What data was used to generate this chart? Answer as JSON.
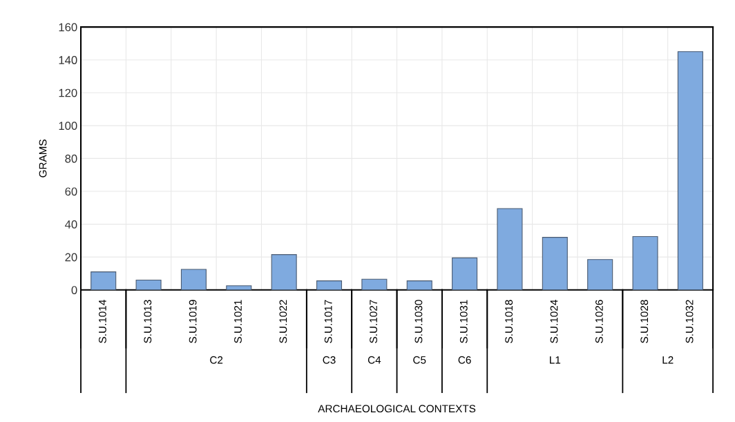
{
  "chart_data": {
    "type": "bar",
    "ylabel": "GRAMS",
    "categories": [
      "S.U.1014",
      "S.U.1013",
      "S.U.1019",
      "S.U.1021",
      "S.U.1022",
      "S.U.1017",
      "S.U.1027",
      "S.U.1030",
      "S.U.1031",
      "S.U.1018",
      "S.U.1024",
      "S.U.1026",
      "S.U.1028",
      "S.U.1032"
    ],
    "values": [
      11,
      6,
      12.5,
      2.5,
      21.5,
      5.5,
      6.5,
      5.5,
      19.5,
      49.5,
      32,
      18.5,
      32.5,
      145
    ],
    "color": "#7faadf",
    "ylim": [
      0,
      160
    ],
    "yticks": [
      0,
      20,
      40,
      60,
      80,
      100,
      120,
      140,
      160
    ],
    "grid": true,
    "annotations": [
      "C2",
      "C3",
      "C4",
      "C5",
      "C6",
      "L1",
      "L2",
      "ARCHAEOLOGICAL CONTEXTS"
    ]
  }
}
